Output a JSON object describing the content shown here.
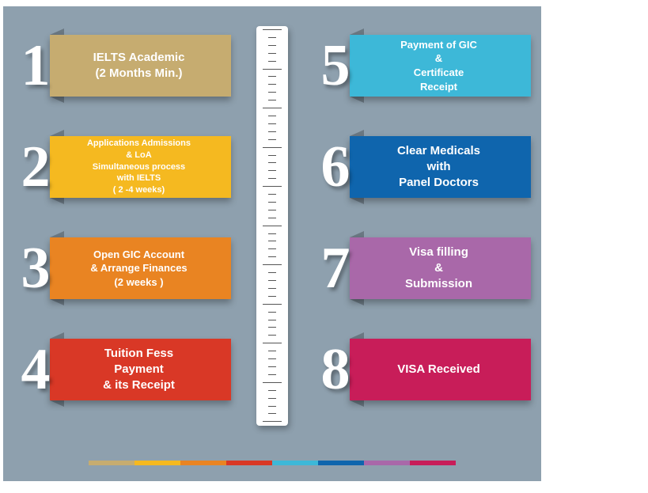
{
  "background_color": "#8ea0ae",
  "number_color": "#ffffff",
  "steps_left": [
    {
      "n": "1",
      "text": "IELTS Academic\n(2 Months Min.)",
      "color": "#c6ac70",
      "fontsize": 15
    },
    {
      "n": "2",
      "text": "Applications Admissions\n& LoA\nSimultaneous process\nwith IELTS\n( 2 -4 weeks)",
      "color": "#f5b920",
      "fontsize": 11
    },
    {
      "n": "3",
      "text": "Open GIC  Account\n& Arrange Finances\n(2 weeks )",
      "color": "#e98422",
      "fontsize": 13
    },
    {
      "n": "4",
      "text": "Tuition Fess\nPayment\n& its Receipt",
      "color": "#d93826",
      "fontsize": 15
    }
  ],
  "steps_right": [
    {
      "n": "5",
      "text": "Payment of GIC\n&\nCertificate\nReceipt",
      "color": "#3db8d8",
      "fontsize": 13
    },
    {
      "n": "6",
      "text": "Clear Medicals\nwith\nPanel Doctors",
      "color": "#0f65ad",
      "fontsize": 15
    },
    {
      "n": "7",
      "text": "Visa filling\n&\nSubmission",
      "color": "#a968a9",
      "fontsize": 15
    },
    {
      "n": "8",
      "text": "VISA Received",
      "color": "#c81d59",
      "fontsize": 15
    }
  ],
  "footer_colors": [
    "#c6ac70",
    "#f5b920",
    "#e98422",
    "#d93826",
    "#3db8d8",
    "#0f65ad",
    "#a968a9",
    "#c81d59"
  ],
  "ruler": {
    "major_ticks": 11,
    "minor_per_major": 4
  }
}
